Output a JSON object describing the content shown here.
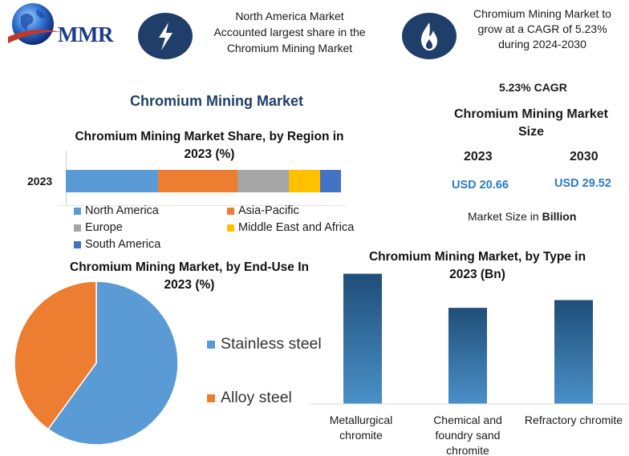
{
  "header": {
    "logo_text": "MMR",
    "note1": [
      "North America Market",
      "Accounted largest share in the",
      "Chromium Mining Market"
    ],
    "note2": [
      "Chromium Mining Market to",
      "grow at a CAGR of 5.23%",
      "during 2024-2030"
    ],
    "icon1": "lightning-icon",
    "icon2": "flame-icon"
  },
  "main_title": "Chromium Mining Market",
  "right_panel": {
    "cagr": "5.23% CAGR",
    "size_title": [
      "Chromium Mining Market",
      "Size"
    ],
    "year_a": "2023",
    "year_b": "2030",
    "usd_a": "USD 20.66",
    "usd_b": "USD 29.52",
    "note_prefix": "Market Size in ",
    "note_unit": "Billion"
  },
  "colors": {
    "north_america": "#5b9bd5",
    "asia_pacific": "#ed7d31",
    "europe": "#a5a5a5",
    "mea": "#ffc000",
    "south_america": "#4472c4",
    "type_bar_top": "#1f4e79",
    "type_bar_bottom": "#4a90c8"
  },
  "chart_data": [
    {
      "type": "bar",
      "stacked": true,
      "orientation": "horizontal",
      "title": [
        "Chromium Mining Market Share, by Region in",
        "2023 (%)"
      ],
      "categories": [
        "2023"
      ],
      "series": [
        {
          "name": "North America",
          "values": [
            33.5
          ]
        },
        {
          "name": "Asia-Pacific",
          "values": [
            29
          ]
        },
        {
          "name": "Europe",
          "values": [
            18.5
          ]
        },
        {
          "name": "Middle East and Africa",
          "values": [
            11.5
          ]
        },
        {
          "name": "South America",
          "values": [
            7.5
          ]
        }
      ],
      "legend": "bottom"
    },
    {
      "type": "pie",
      "title": [
        "Chromium Mining Market, by End-Use In",
        "2023 (%)"
      ],
      "labels": [
        "Stainless steel",
        "Alloy steel"
      ],
      "values": [
        60,
        40
      ],
      "legend": "right"
    },
    {
      "type": "bar",
      "title": [
        "Chromium Mining Market, by Type in",
        "2023 (Bn)"
      ],
      "categories": [
        [
          "Metallurgical",
          "chromite"
        ],
        [
          "Chemical and",
          "foundry sand",
          "chromite"
        ],
        [
          "Refractory chromite"
        ]
      ],
      "values": [
        8.4,
        6.2,
        6.7
      ],
      "ylim": [
        0,
        9
      ]
    }
  ]
}
